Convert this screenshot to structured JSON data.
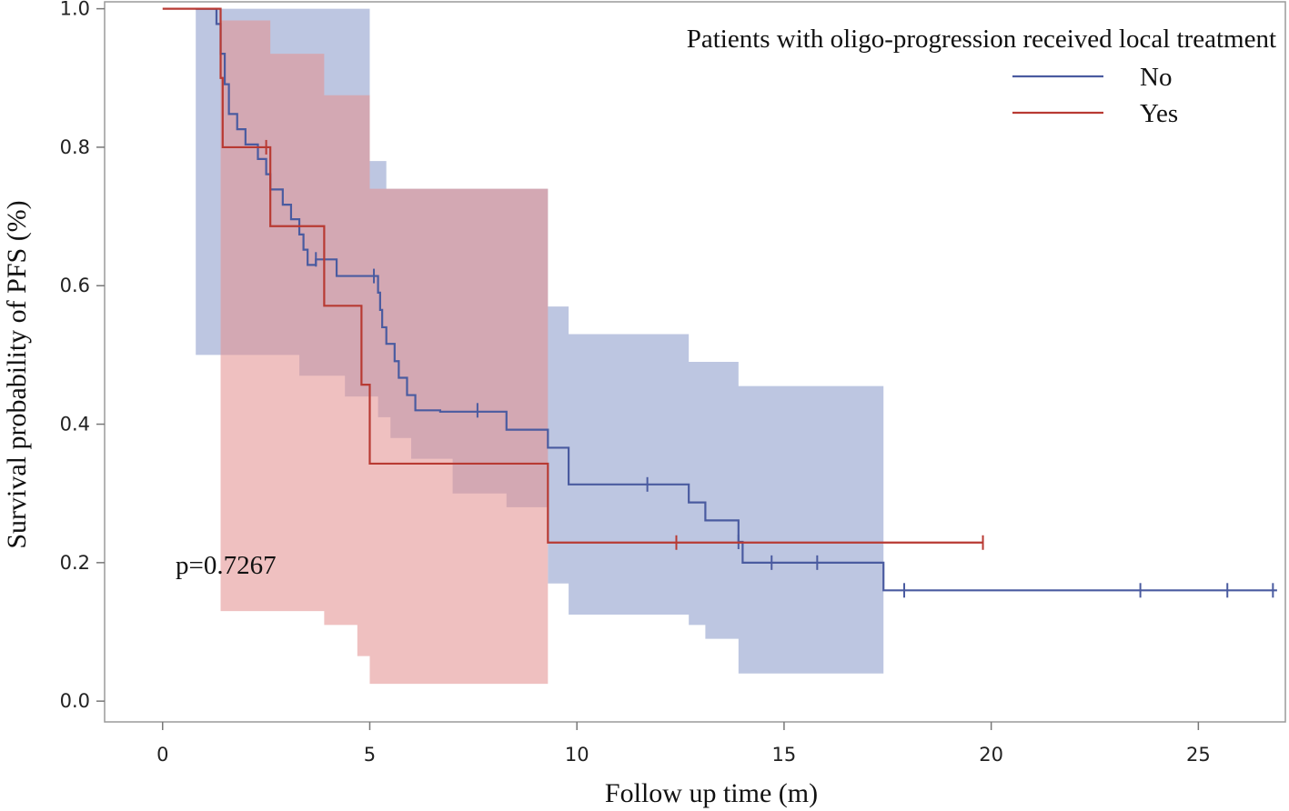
{
  "chart_data": {
    "type": "line",
    "subtype": "kaplan-meier",
    "title": "",
    "xlabel": "Follow up time (m)",
    "ylabel": "Survival probability of PFS (%)",
    "xlim": [
      -1.4,
      27.1
    ],
    "ylim": [
      -0.03,
      1.01
    ],
    "xticks": [
      0,
      5,
      10,
      15,
      20,
      25
    ],
    "xtick_labels": [
      "0",
      "5",
      "10",
      "15",
      "20",
      "25"
    ],
    "yticks": [
      0.0,
      0.2,
      0.4,
      0.6,
      0.8,
      1.0
    ],
    "ytick_labels": [
      "0.0",
      "0.2",
      "0.4",
      "0.6",
      "0.8",
      "1.0"
    ],
    "legend": {
      "title": "Patients with oligo-progression received local treatment",
      "position": "top-right",
      "entries": [
        {
          "label": "No",
          "color": "#4a5ba0"
        },
        {
          "label": "Yes",
          "color": "#b83a33"
        }
      ]
    },
    "annotation": "p=0.7267",
    "series": [
      {
        "name": "No",
        "color": "#4a5ba0",
        "band_color": "#8e9ccc",
        "steps": [
          [
            0.8,
            1.0
          ],
          [
            1.3,
            0.978
          ],
          [
            1.4,
            0.935
          ],
          [
            1.5,
            0.891
          ],
          [
            1.6,
            0.848
          ],
          [
            1.8,
            0.826
          ],
          [
            2.0,
            0.804
          ],
          [
            2.3,
            0.783
          ],
          [
            2.5,
            0.761
          ],
          [
            2.6,
            0.739
          ],
          [
            2.9,
            0.717
          ],
          [
            3.1,
            0.696
          ],
          [
            3.3,
            0.674
          ],
          [
            3.4,
            0.652
          ],
          [
            3.5,
            0.63
          ],
          [
            3.7,
            0.638
          ],
          [
            4.2,
            0.614
          ],
          [
            5.2,
            0.59
          ],
          [
            5.25,
            0.565
          ],
          [
            5.3,
            0.54
          ],
          [
            5.4,
            0.516
          ],
          [
            5.6,
            0.491
          ],
          [
            5.7,
            0.467
          ],
          [
            5.9,
            0.442
          ],
          [
            6.1,
            0.42
          ],
          [
            6.6,
            0.42
          ],
          [
            6.7,
            0.418
          ],
          [
            8.3,
            0.392
          ],
          [
            9.3,
            0.366
          ],
          [
            9.8,
            0.313
          ],
          [
            12.7,
            0.287
          ],
          [
            13.1,
            0.261
          ],
          [
            13.9,
            0.23
          ],
          [
            14.0,
            0.2
          ],
          [
            17.4,
            0.16
          ],
          [
            26.9,
            0.16
          ]
        ],
        "start": [
          0.8,
          1.0
        ],
        "ci_upper": [
          [
            0.8,
            1.0
          ],
          [
            5.0,
            0.78
          ],
          [
            5.4,
            0.74
          ],
          [
            9.3,
            0.57
          ],
          [
            9.8,
            0.53
          ],
          [
            12.7,
            0.49
          ],
          [
            13.9,
            0.455
          ],
          [
            17.4,
            0.455
          ]
        ],
        "ci_lower": [
          [
            0.8,
            0.5
          ],
          [
            1.6,
            0.5
          ],
          [
            3.3,
            0.47
          ],
          [
            4.4,
            0.44
          ],
          [
            5.2,
            0.41
          ],
          [
            5.5,
            0.38
          ],
          [
            6.0,
            0.35
          ],
          [
            7.0,
            0.3
          ],
          [
            8.3,
            0.28
          ],
          [
            9.3,
            0.17
          ],
          [
            9.8,
            0.125
          ],
          [
            12.7,
            0.11
          ],
          [
            13.1,
            0.09
          ],
          [
            13.9,
            0.04
          ],
          [
            17.4,
            0.04
          ]
        ],
        "censor_x": [
          3.7,
          5.1,
          7.6,
          11.7,
          13.9,
          14.7,
          15.8,
          17.9,
          23.6,
          25.7,
          26.8
        ],
        "censor_y": [
          0.638,
          0.614,
          0.42,
          0.313,
          0.23,
          0.2,
          0.2,
          0.16,
          0.16,
          0.16,
          0.16
        ]
      },
      {
        "name": "Yes",
        "color": "#b83a33",
        "band_color": "#e39292",
        "steps": [
          [
            0.0,
            1.0
          ],
          [
            1.4,
            0.9
          ],
          [
            1.45,
            0.8
          ],
          [
            2.6,
            0.686
          ],
          [
            3.9,
            0.571
          ],
          [
            4.8,
            0.457
          ],
          [
            5.0,
            0.343
          ],
          [
            9.3,
            0.229
          ],
          [
            19.8,
            0.229
          ]
        ],
        "start": [
          0.0,
          1.0
        ],
        "ci_upper": [
          [
            1.4,
            0.983
          ],
          [
            2.5,
            0.983
          ],
          [
            2.6,
            0.935
          ],
          [
            3.8,
            0.935
          ],
          [
            3.9,
            0.875
          ],
          [
            4.8,
            0.875
          ],
          [
            5.0,
            0.74
          ],
          [
            9.3,
            0.74
          ]
        ],
        "ci_lower": [
          [
            1.4,
            0.13
          ],
          [
            3.9,
            0.11
          ],
          [
            4.7,
            0.065
          ],
          [
            5.0,
            0.025
          ],
          [
            9.3,
            0.025
          ]
        ],
        "censor_x": [
          2.5,
          12.4,
          19.8
        ],
        "censor_y": [
          0.8,
          0.229,
          0.229
        ]
      }
    ]
  }
}
